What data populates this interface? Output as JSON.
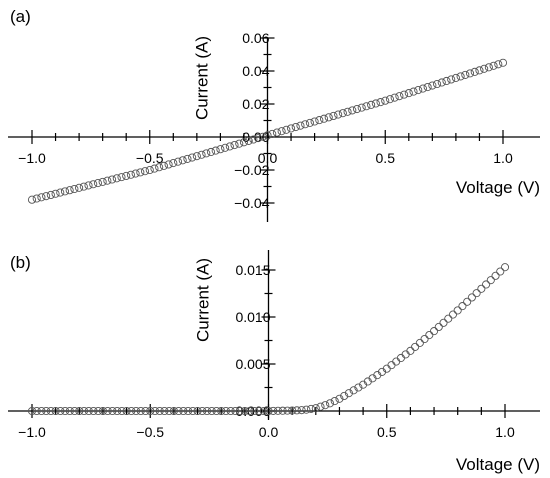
{
  "chart_data": [
    {
      "type": "scatter",
      "panel_label": "(a)",
      "xlabel": "Voltage (V)",
      "ylabel": "Current (A)",
      "xlim": [
        -1.0,
        1.0
      ],
      "ylim": [
        -0.04,
        0.06
      ],
      "x_ticks": [
        -1.0,
        -0.5,
        0.0,
        0.5,
        1.0
      ],
      "x_tick_labels": [
        "−1.0",
        "−0.5",
        "0.0",
        "0.5",
        "1.0"
      ],
      "y_ticks": [
        -0.04,
        -0.02,
        0.02,
        0.04,
        0.06
      ],
      "y_tick_labels": [
        "−0.04",
        "−0.02",
        "0.02",
        "0.04",
        "0.06"
      ],
      "y_zero_label": "0.00",
      "grid": false,
      "marker": "open-circle",
      "x": [
        -1.0,
        -0.75,
        -0.5,
        -0.25,
        0.0,
        0.25,
        0.5,
        0.75,
        1.0
      ],
      "y": [
        -0.038,
        -0.029,
        -0.02,
        -0.0095,
        0.001,
        0.0115,
        0.022,
        0.0335,
        0.045
      ]
    },
    {
      "type": "scatter",
      "panel_label": "(b)",
      "xlabel": "Voltage (V)",
      "ylabel": "Current (A)",
      "xlim": [
        -1.0,
        1.0
      ],
      "ylim": [
        0.0,
        0.015
      ],
      "x_ticks": [
        -1.0,
        -0.5,
        0.0,
        0.5,
        1.0
      ],
      "x_tick_labels": [
        "−1.0",
        "−0.5",
        "0.0",
        "0.5",
        "1.0"
      ],
      "y_ticks": [
        0.005,
        0.01,
        0.015
      ],
      "y_tick_labels": [
        "0.005",
        "0.010",
        "0.015"
      ],
      "y_zero_label": "0.000",
      "grid": false,
      "marker": "open-circle",
      "x": [
        -1.0,
        -0.5,
        0.0,
        0.1,
        0.15,
        0.2,
        0.25,
        0.3,
        0.4,
        0.5,
        0.6,
        0.7,
        0.8,
        0.9,
        1.0
      ],
      "y": [
        0.0,
        0.0,
        0.0,
        5e-05,
        0.0001,
        0.0003,
        0.0007,
        0.0013,
        0.0028,
        0.0045,
        0.0064,
        0.0085,
        0.0107,
        0.013,
        0.0153
      ]
    }
  ]
}
